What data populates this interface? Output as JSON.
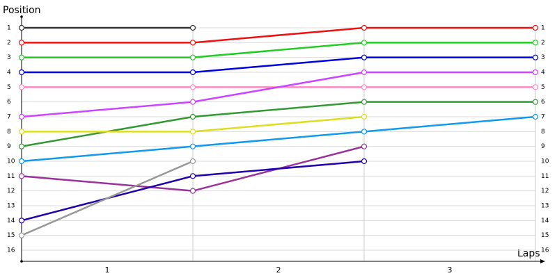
{
  "chart_data": {
    "type": "line",
    "y_label": "Position",
    "x_label": "Laps",
    "x": [
      0,
      1,
      2,
      3
    ],
    "xlim": [
      0,
      3
    ],
    "xticks": [
      {
        "value": 0.5,
        "label": "1"
      },
      {
        "value": 1.5,
        "label": "2"
      },
      {
        "value": 2.5,
        "label": "3"
      }
    ],
    "ylim": [
      16.75,
      0.25
    ],
    "yticks": [
      1,
      2,
      3,
      4,
      5,
      6,
      7,
      8,
      9,
      10,
      11,
      12,
      13,
      14,
      15,
      16
    ],
    "grid": true,
    "series": [
      {
        "color": "#333333",
        "values": [
          1,
          1,
          null,
          null
        ]
      },
      {
        "color": "#ee1111",
        "values": [
          2,
          2,
          1,
          1
        ]
      },
      {
        "color": "#22cc22",
        "values": [
          3,
          3,
          2,
          2
        ]
      },
      {
        "color": "#0000dd",
        "values": [
          4,
          4,
          3,
          3
        ]
      },
      {
        "color": "#ff88c0",
        "values": [
          5,
          5,
          5,
          5
        ]
      },
      {
        "color": "#cc44ff",
        "values": [
          7,
          6,
          4,
          4
        ]
      },
      {
        "color": "#339933",
        "values": [
          9,
          7,
          6,
          6
        ]
      },
      {
        "color": "#dddd22",
        "values": [
          8,
          8,
          7,
          null
        ]
      },
      {
        "color": "#1199ee",
        "values": [
          10,
          9,
          8,
          7
        ]
      },
      {
        "color": "#993399",
        "values": [
          11,
          12,
          9,
          null
        ]
      },
      {
        "color": "#2200aa",
        "values": [
          14,
          11,
          10,
          null
        ]
      },
      {
        "color": "#999999",
        "values": [
          15,
          10,
          null,
          null
        ]
      }
    ]
  }
}
